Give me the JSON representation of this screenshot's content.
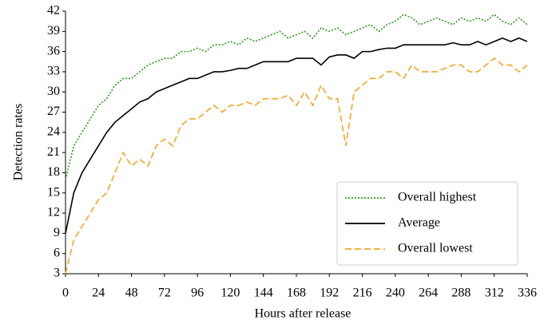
{
  "chart_data": {
    "type": "line",
    "x_label": "Hours after release",
    "y_label": "Detection rates",
    "x": [
      0,
      6,
      12,
      18,
      24,
      30,
      36,
      42,
      48,
      54,
      60,
      66,
      72,
      78,
      84,
      90,
      96,
      102,
      108,
      114,
      120,
      126,
      132,
      138,
      144,
      150,
      156,
      162,
      168,
      174,
      180,
      186,
      192,
      198,
      204,
      210,
      216,
      222,
      228,
      234,
      240,
      246,
      252,
      258,
      264,
      270,
      276,
      282,
      288,
      294,
      300,
      306,
      312,
      318,
      324,
      330,
      336
    ],
    "series": [
      {
        "name": "Overall highest",
        "color": "#2a9a1a",
        "dash": "2,2",
        "values": [
          17,
          22,
          24,
          26,
          28,
          29,
          31,
          32,
          32,
          33,
          34,
          34.5,
          35,
          35,
          36,
          36,
          36.5,
          36,
          37,
          37,
          37.5,
          37,
          38,
          37.5,
          38,
          38.5,
          39,
          38,
          38.5,
          39,
          38,
          39.5,
          39,
          39.5,
          38.5,
          39,
          39.5,
          40,
          39,
          40,
          40.5,
          41.5,
          41,
          40,
          40.5,
          41,
          40.5,
          40,
          41,
          40.5,
          41,
          40.5,
          41.5,
          40.5,
          40,
          41,
          40
        ]
      },
      {
        "name": "Average",
        "color": "#000000",
        "dash": "none",
        "values": [
          9,
          15,
          18,
          20,
          22,
          24,
          25.5,
          26.5,
          27.5,
          28.5,
          29,
          30,
          30.5,
          31,
          31.5,
          32,
          32,
          32.5,
          33,
          33,
          33.2,
          33.5,
          33.5,
          34,
          34.5,
          34.5,
          34.5,
          34.5,
          35,
          35,
          35,
          34,
          35.2,
          35.5,
          35.5,
          35,
          36,
          36,
          36.3,
          36.5,
          36.5,
          37,
          37,
          37,
          37,
          37,
          37,
          37.3,
          37,
          37,
          37.5,
          37,
          37.5,
          38,
          37.5,
          38,
          37.5
        ]
      },
      {
        "name": "Overall lowest",
        "color": "#f5a623",
        "dash": "8,4",
        "values": [
          3,
          8,
          10,
          12,
          14,
          15,
          18,
          21,
          19,
          20,
          19,
          22,
          23,
          22,
          25,
          26,
          26,
          27,
          28,
          27,
          28,
          28,
          28.5,
          28,
          29,
          29,
          29,
          29.5,
          28,
          30,
          28,
          31,
          29,
          29,
          22,
          30,
          31,
          32,
          32,
          33,
          33,
          32,
          34,
          33,
          33,
          33,
          33.5,
          34,
          34,
          33,
          33,
          34,
          35,
          34,
          34,
          33,
          34
        ]
      }
    ],
    "xlim": [
      0,
      336
    ],
    "xticks": [
      0,
      24,
      48,
      72,
      96,
      120,
      144,
      168,
      192,
      216,
      240,
      264,
      288,
      312,
      336
    ],
    "ylim": [
      3,
      42
    ],
    "yticks": [
      3,
      6,
      9,
      12,
      15,
      18,
      21,
      24,
      27,
      30,
      33,
      36,
      39,
      42
    ],
    "legend": "lower right"
  }
}
